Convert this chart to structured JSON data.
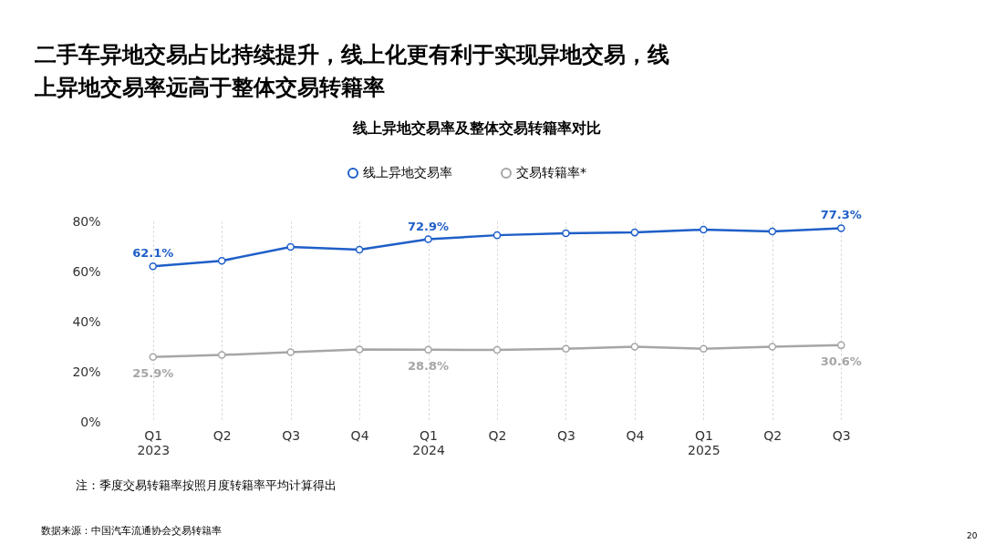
{
  "chart_data": {
    "type": "line",
    "title": "二手车异地交易占比持续提升，线上化更有利于实现异地交易，线上异地交易率远高于整体交易转籍率",
    "subtitle": "线上异地交易率及整体交易转籍率对比",
    "categories": [
      "Q1\n2023",
      "Q2",
      "Q3",
      "Q4",
      "Q1\n2024",
      "Q2",
      "Q3",
      "Q4",
      "Q1\n2025",
      "Q2",
      "Q3"
    ],
    "series": [
      {
        "name": "线上异地交易率",
        "color": "#1f5fc8",
        "values": [
          62.1,
          64.3,
          69.8,
          68.7,
          72.9,
          74.5,
          75.3,
          75.6,
          76.7,
          76.0,
          77.3
        ],
        "value_labels": [
          "62.1%",
          null,
          null,
          null,
          "72.9%",
          null,
          null,
          null,
          null,
          null,
          "77.3%"
        ]
      },
      {
        "name": "交易转籍率*",
        "color": "#a6a6a6",
        "values": [
          25.9,
          26.7,
          27.8,
          28.9,
          28.8,
          28.7,
          29.2,
          30.0,
          29.2,
          30.0,
          30.6
        ],
        "value_labels": [
          "25.9%",
          null,
          null,
          null,
          "28.8%",
          null,
          null,
          null,
          null,
          null,
          "30.6%"
        ]
      }
    ],
    "ylim": [
      0,
      80
    ],
    "yticks": [
      {
        "value": 0,
        "label": "0%"
      },
      {
        "value": 20,
        "label": "20%"
      },
      {
        "value": 40,
        "label": "40%"
      },
      {
        "value": 60,
        "label": "60%"
      },
      {
        "value": 80,
        "label": "80%"
      }
    ],
    "grid": "x",
    "legend": "top",
    "marker": "circle",
    "line_style": "solid",
    "annotations": [
      "注：季度交易转籍率按照月度转籍率平均计算得出",
      "数据来源：中国汽车流通协会交易转籍率",
      "20"
    ]
  }
}
